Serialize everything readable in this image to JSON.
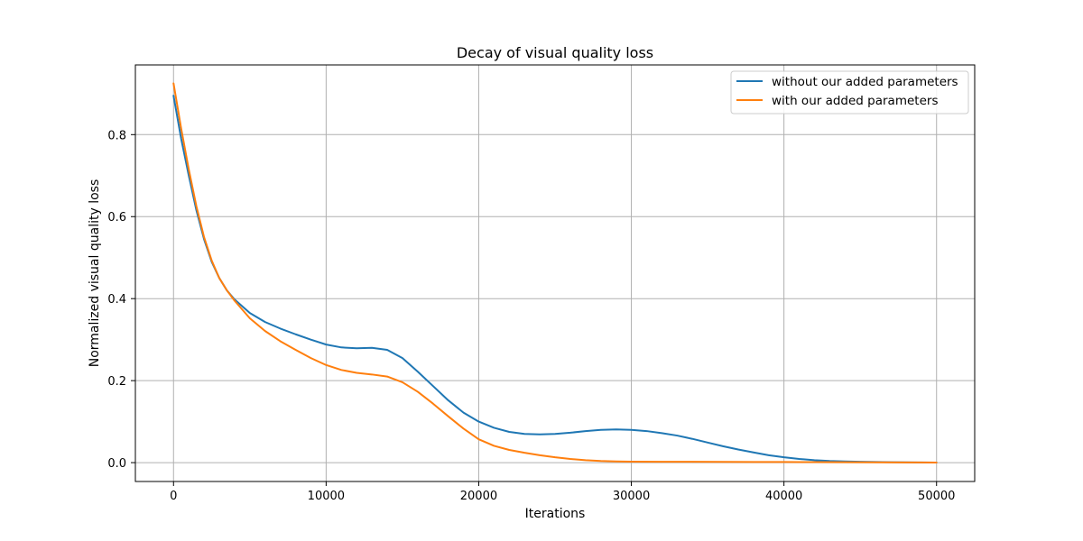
{
  "chart_data": {
    "type": "line",
    "title": "Decay of visual quality loss",
    "xlabel": "Iterations",
    "ylabel": "Normalized visual quality loss",
    "xlim": [
      -2500,
      52500
    ],
    "ylim": [
      -0.046,
      0.97
    ],
    "xticks": [
      0,
      10000,
      20000,
      30000,
      40000,
      50000
    ],
    "yticks": [
      0.0,
      0.2,
      0.4,
      0.6,
      0.8
    ],
    "xtick_labels": [
      "0",
      "10000",
      "20000",
      "30000",
      "40000",
      "50000"
    ],
    "ytick_labels": [
      "0.0",
      "0.2",
      "0.4",
      "0.6",
      "0.8"
    ],
    "grid": true,
    "legend_position": "top-right",
    "series": [
      {
        "name": "without our added parameters",
        "color": "#1f77b4",
        "x": [
          0,
          500,
          1000,
          1500,
          2000,
          2500,
          3000,
          3500,
          4000,
          5000,
          6000,
          7000,
          8000,
          9000,
          10000,
          11000,
          12000,
          13000,
          14000,
          15000,
          16000,
          17000,
          18000,
          19000,
          20000,
          21000,
          22000,
          23000,
          24000,
          25000,
          26000,
          27000,
          28000,
          29000,
          30000,
          31000,
          32000,
          33000,
          34000,
          35000,
          36000,
          37000,
          38000,
          39000,
          40000,
          41000,
          42000,
          43000,
          44000,
          45000,
          46000,
          47000,
          48000,
          49000,
          50000
        ],
        "y": [
          0.895,
          0.79,
          0.7,
          0.615,
          0.545,
          0.49,
          0.45,
          0.42,
          0.398,
          0.365,
          0.343,
          0.327,
          0.313,
          0.3,
          0.288,
          0.281,
          0.279,
          0.28,
          0.275,
          0.255,
          0.222,
          0.187,
          0.152,
          0.122,
          0.1,
          0.085,
          0.075,
          0.07,
          0.069,
          0.07,
          0.073,
          0.077,
          0.08,
          0.081,
          0.08,
          0.077,
          0.072,
          0.066,
          0.058,
          0.049,
          0.04,
          0.032,
          0.025,
          0.018,
          0.013,
          0.009,
          0.006,
          0.004,
          0.003,
          0.002,
          0.0015,
          0.001,
          0.0008,
          0.0005,
          0.0002
        ]
      },
      {
        "name": "with our added parameters",
        "color": "#ff7f0e",
        "x": [
          0,
          500,
          1000,
          1500,
          2000,
          2500,
          3000,
          3500,
          4000,
          5000,
          6000,
          7000,
          8000,
          9000,
          10000,
          11000,
          12000,
          13000,
          14000,
          15000,
          16000,
          17000,
          18000,
          19000,
          20000,
          21000,
          22000,
          23000,
          24000,
          25000,
          26000,
          27000,
          28000,
          29000,
          30000,
          32000,
          34000,
          36000,
          38000,
          40000,
          42000,
          44000,
          46000,
          48000,
          50000
        ],
        "y": [
          0.925,
          0.815,
          0.715,
          0.625,
          0.55,
          0.493,
          0.45,
          0.42,
          0.395,
          0.352,
          0.321,
          0.296,
          0.275,
          0.255,
          0.238,
          0.226,
          0.219,
          0.215,
          0.21,
          0.196,
          0.173,
          0.144,
          0.113,
          0.083,
          0.057,
          0.041,
          0.031,
          0.024,
          0.018,
          0.013,
          0.009,
          0.006,
          0.004,
          0.003,
          0.0025,
          0.002,
          0.002,
          0.0018,
          0.0016,
          0.0015,
          0.0012,
          0.001,
          0.0008,
          0.0005,
          0.0002
        ]
      }
    ]
  }
}
